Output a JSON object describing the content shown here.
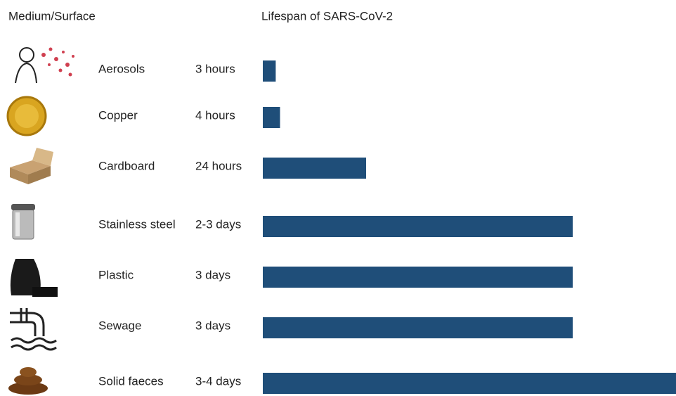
{
  "chart_data": {
    "type": "bar",
    "orientation": "horizontal",
    "category_header": "Medium/Surface",
    "title": "Lifespan of SARS-CoV-2",
    "categories": [
      "Aerosols",
      "Copper",
      "Cardboard",
      "Stainless steel",
      "Plastic",
      "Sewage",
      "Solid faeces"
    ],
    "values": [
      3,
      4,
      24,
      72,
      72,
      72,
      96
    ],
    "value_labels": [
      "3 hours",
      "4 hours",
      "24 hours",
      "2-3 days",
      "3 days",
      "3 days",
      "3-4 days"
    ],
    "color": "#1f4e79",
    "xlim": [
      0,
      96
    ]
  }
}
